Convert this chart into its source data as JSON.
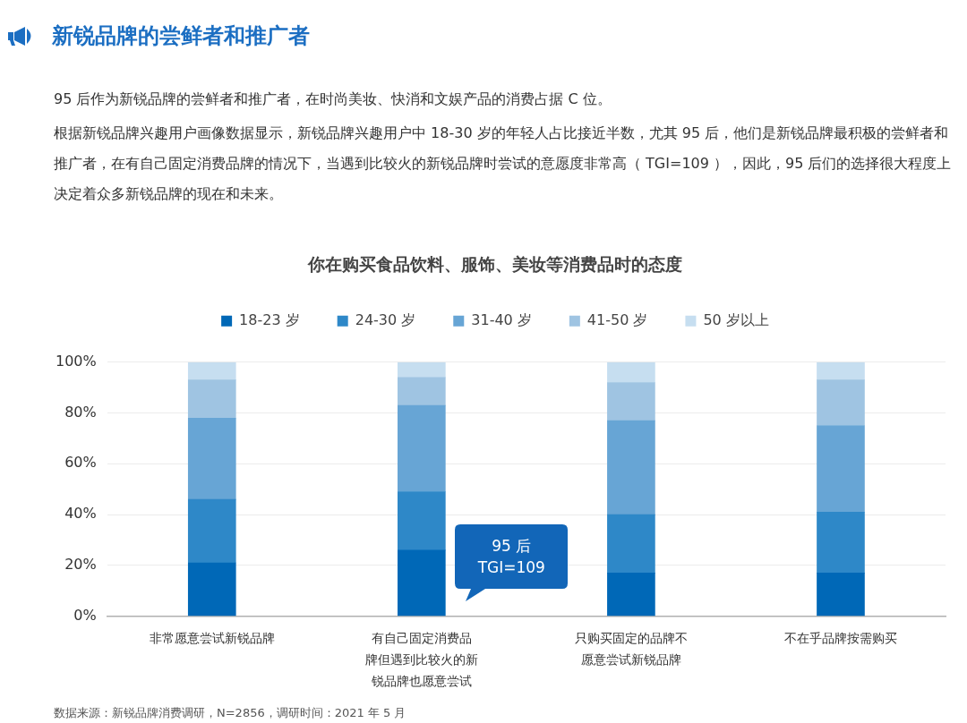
{
  "chart_data": {
    "type": "bar",
    "title": "新锐品牌的尝鲜者和推广者",
    "subtitle": "你在购买食品饮料、服饰、美妆等消费品时的态度",
    "categories": [
      "非常愿意尝试新锐品牌",
      "有自己固定消费品牌但遇到比较火的新锐品牌也愿意尝试",
      "只购买固定的品牌不愿意尝试新锐品牌",
      "不在乎品牌按需购买"
    ],
    "series": [
      {
        "name": "18-23 岁",
        "color": "#0068b7",
        "values": [
          21,
          26,
          17,
          17
        ]
      },
      {
        "name": "24-30 岁",
        "color": "#2e88c8",
        "values": [
          25,
          23,
          23,
          24
        ]
      },
      {
        "name": "31-40 岁",
        "color": "#67a5d5",
        "values": [
          32,
          34,
          37,
          34
        ]
      },
      {
        "name": "41-50 岁",
        "color": "#9fc4e2",
        "values": [
          15,
          11,
          15,
          18
        ]
      },
      {
        "name": "50 岁以上",
        "color": "#c6def0",
        "values": [
          7,
          6,
          8,
          7
        ]
      }
    ],
    "stacked": true,
    "ylim": [
      0,
      100
    ],
    "yticks": [
      {
        "value": 0,
        "label": "0%"
      },
      {
        "value": 20,
        "label": "20%"
      },
      {
        "value": 40,
        "label": "40%"
      },
      {
        "value": 60,
        "label": "60%"
      },
      {
        "value": 80,
        "label": "80%"
      },
      {
        "value": 100,
        "label": "100%"
      }
    ],
    "grid": "y",
    "legend": "top",
    "annotations": [
      "95 后作为新锐品牌的尝鲜者和推广者，在时尚美妆、快消和文娱产品的消费占据 C 位。",
      "根据新锐品牌兴趣用户画像数据显示，新锐品牌兴趣用户中 18-30 岁的年轻人占比接近半数，尤其 95 后，他们是新锐品牌最积极的尝鲜者和推广者，在有自己固定消费品牌的情况下，当遇到比较火的新锐品牌时尝试的意愿度非常高（ TGI=109 ），因此，95 后们的选择很大程度上决定着众多新锐品牌的现在和未来。",
      "95 后\nTGI=109",
      "数据来源：新锐品牌消费调研，N=2856，调研时间：2021 年 5 月"
    ]
  }
}
